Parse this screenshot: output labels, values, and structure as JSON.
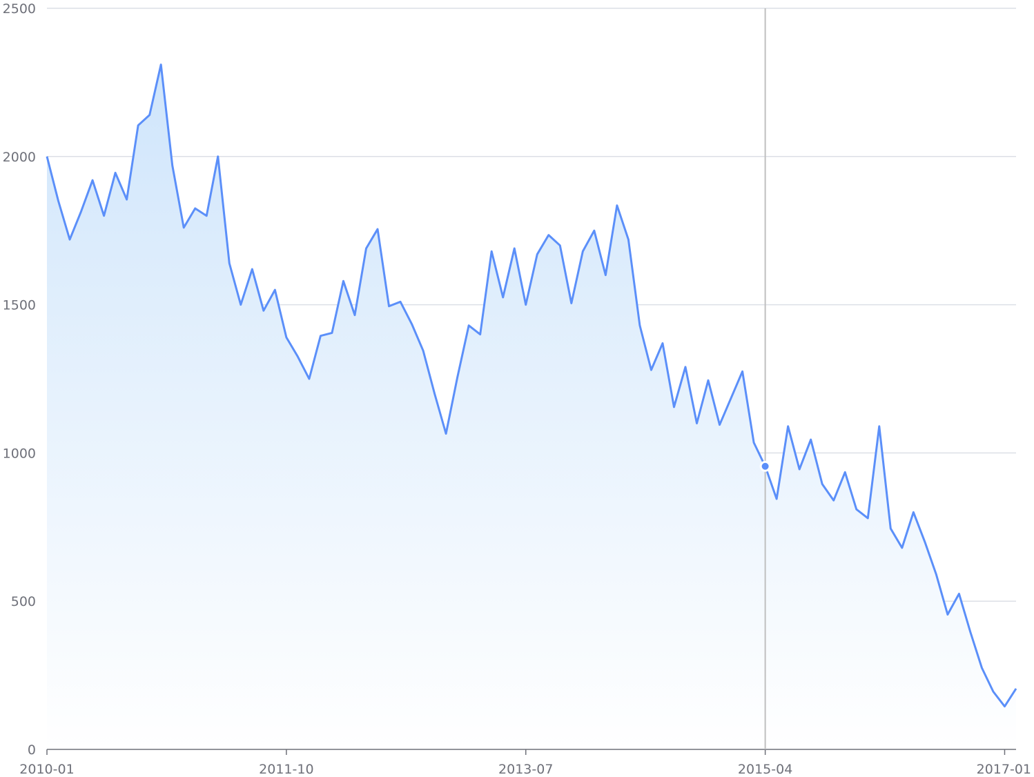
{
  "chart_data": {
    "type": "area",
    "title": "",
    "xlabel": "",
    "ylabel": "",
    "ylim": [
      0,
      2500
    ],
    "y_ticks": [
      "0",
      "500",
      "1000",
      "1500",
      "2000",
      "2500"
    ],
    "x_ticks": [
      "2010-01",
      "2011-10",
      "2013-07",
      "2015-04",
      "2017-01"
    ],
    "x_start": "2010-01",
    "x_end": "2017-02",
    "grid": true,
    "legend": "none",
    "colors": {
      "line": "#5b8ff9",
      "area_top": "#cfe5fb",
      "area_bottom": "#ffffff",
      "grid": "#dcdfe6",
      "axis": "#6e7079",
      "crosshair": "#bfbfbf"
    },
    "active_point": {
      "x": "2015-04",
      "y": 955
    },
    "series": [
      {
        "x": [
          "2010-01",
          "2010-02",
          "2010-03",
          "2010-04",
          "2010-05",
          "2010-06",
          "2010-07",
          "2010-08",
          "2010-09",
          "2010-10",
          "2010-11",
          "2010-12",
          "2011-01",
          "2011-02",
          "2011-03",
          "2011-04",
          "2011-05",
          "2011-06",
          "2011-07",
          "2011-08",
          "2011-09",
          "2011-10",
          "2011-11",
          "2011-12",
          "2012-01",
          "2012-02",
          "2012-03",
          "2012-04",
          "2012-05",
          "2012-06",
          "2012-07",
          "2012-08",
          "2012-09",
          "2012-10",
          "2012-11",
          "2012-12",
          "2013-01",
          "2013-02",
          "2013-03",
          "2013-04",
          "2013-05",
          "2013-06",
          "2013-07",
          "2013-08",
          "2013-09",
          "2013-10",
          "2013-11",
          "2013-12",
          "2014-01",
          "2014-02",
          "2014-03",
          "2014-04",
          "2014-05",
          "2014-06",
          "2014-07",
          "2014-08",
          "2014-09",
          "2014-10",
          "2014-11",
          "2014-12",
          "2015-01",
          "2015-02",
          "2015-03",
          "2015-04",
          "2015-05",
          "2015-06",
          "2015-07",
          "2015-08",
          "2015-09",
          "2015-10",
          "2015-11",
          "2015-12",
          "2016-01",
          "2016-02",
          "2016-03",
          "2016-04",
          "2016-05",
          "2016-06",
          "2016-07",
          "2016-08",
          "2016-09",
          "2016-10",
          "2016-11",
          "2016-12",
          "2017-01",
          "2017-02"
        ],
        "values": [
          2000,
          1850,
          1720,
          1815,
          1920,
          1800,
          1945,
          1855,
          2105,
          2140,
          2310,
          1970,
          1760,
          1825,
          1800,
          2000,
          1640,
          1500,
          1620,
          1480,
          1550,
          1390,
          1325,
          1250,
          1395,
          1405,
          1580,
          1465,
          1690,
          1755,
          1495,
          1510,
          1435,
          1345,
          1200,
          1065,
          1255,
          1430,
          1400,
          1680,
          1525,
          1690,
          1500,
          1670,
          1735,
          1700,
          1505,
          1680,
          1750,
          1600,
          1835,
          1720,
          1430,
          1280,
          1370,
          1155,
          1290,
          1100,
          1245,
          1095,
          1185,
          1275,
          1035,
          955,
          845,
          1090,
          945,
          1045,
          895,
          840,
          935,
          810,
          780,
          1090,
          745,
          680,
          800,
          700,
          590,
          455,
          525,
          395,
          275,
          195,
          145,
          205
        ]
      }
    ]
  }
}
